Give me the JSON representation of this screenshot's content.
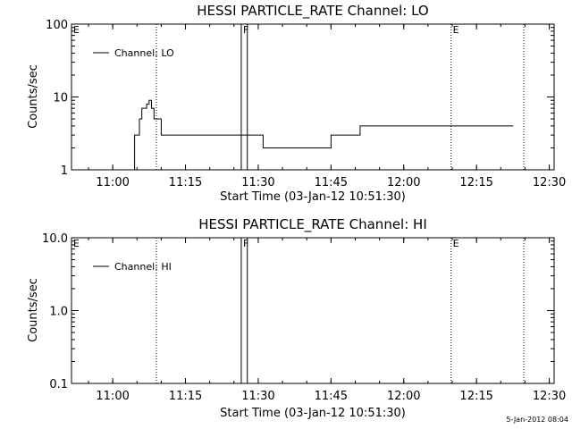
{
  "chart_data": [
    {
      "type": "line",
      "title": "HESSI PARTICLE_RATE Channel: LO",
      "xlabel": "Start Time (03-Jan-12 10:51:30)",
      "ylabel": "Counts/sec",
      "yscale": "log",
      "ylim": [
        1,
        100
      ],
      "xlim": [
        "10:51:30",
        "12:31:00"
      ],
      "xticks": [
        "11:00",
        "11:15",
        "11:30",
        "11:45",
        "12:00",
        "12:15",
        "12:30"
      ],
      "yticks": [
        "1",
        "10",
        "100"
      ],
      "legend": {
        "placement": "top-left",
        "entries": [
          "Channel: LO"
        ]
      },
      "vlines_dotted": [
        "11:09:00",
        "12:09:45",
        "12:24:45"
      ],
      "vlines_solid": [
        "11:26:30",
        "11:27:45"
      ],
      "flags": [
        {
          "label": "E",
          "at": "10:51:30"
        },
        {
          "label": "F",
          "at": "11:26:30"
        },
        {
          "label": "E",
          "at": "12:09:45"
        }
      ],
      "series": [
        {
          "x": [
            "10:54:00",
            "10:56:00",
            "10:57:30",
            "10:58:30",
            "10:59:30",
            "11:00:30",
            "11:01:30",
            "11:02:00",
            "11:03:00",
            "11:04:30",
            "11:05:30",
            "11:06:00",
            "11:07:00",
            "11:07:30",
            "11:08:00",
            "11:08:30",
            "11:09:30",
            "11:10:00",
            "11:11:00",
            "11:12:00",
            "11:13:00",
            "11:14:00",
            "11:15:00",
            "11:16:00",
            "11:17:00",
            "11:18:00",
            "11:19:00",
            "11:20:00",
            "11:21:00",
            "11:22:00",
            "11:23:00",
            "11:24:00",
            "11:25:00",
            "11:26:00",
            "11:27:00",
            "11:28:00",
            "11:29:00",
            "11:30:00",
            "11:31:00",
            "11:32:00",
            "11:33:00",
            "11:34:00",
            "11:35:00",
            "11:36:00",
            "11:37:00",
            "11:38:00",
            "11:39:00",
            "11:40:00",
            "11:41:00",
            "11:42:00",
            "11:43:00",
            "11:44:00",
            "11:45:00",
            "11:46:00",
            "11:47:00",
            "11:48:00",
            "11:49:00",
            "11:50:00",
            "11:51:00",
            "11:52:00",
            "11:53:00",
            "11:54:00",
            "11:55:00",
            "11:56:00",
            "11:57:00",
            "11:58:00",
            "11:59:00",
            "11:59:30",
            "12:00:00",
            "12:00:30",
            "12:01:00",
            "12:02:00",
            "12:03:00",
            "12:04:00",
            "12:05:00",
            "12:06:00",
            "12:07:00",
            "12:08:00",
            "12:09:00",
            "12:10:00",
            "12:11:00",
            "12:12:00",
            "12:13:00",
            "12:14:00",
            "12:15:00",
            "12:16:00",
            "12:17:00",
            "12:22:00"
          ],
          "y": [
            1,
            1,
            1,
            1,
            1,
            1,
            1,
            1,
            1,
            3,
            5,
            7,
            8,
            9,
            7,
            5,
            5,
            3,
            3,
            3,
            3,
            3,
            3,
            3,
            3,
            3,
            3,
            3,
            3,
            3,
            3,
            3,
            3,
            3,
            3,
            3,
            3,
            3,
            2,
            2,
            2,
            2,
            2,
            2,
            2,
            2,
            2,
            2,
            2,
            2,
            2,
            2,
            3,
            3,
            3,
            3,
            3,
            3,
            4,
            4,
            4,
            4,
            4,
            4,
            4,
            4,
            4,
            4,
            4,
            4,
            4,
            4,
            4,
            4,
            4,
            4,
            4,
            4,
            4,
            4,
            4,
            4,
            4,
            4,
            4,
            4,
            4,
            4
          ]
        }
      ]
    },
    {
      "type": "line",
      "title": "HESSI PARTICLE_RATE Channel: HI",
      "xlabel": "Start Time (03-Jan-12 10:51:30)",
      "ylabel": "Counts/sec",
      "yscale": "log",
      "ylim": [
        0.1,
        10
      ],
      "xlim": [
        "10:51:30",
        "12:31:00"
      ],
      "xticks": [
        "11:00",
        "11:15",
        "11:30",
        "11:45",
        "12:00",
        "12:15",
        "12:30"
      ],
      "yticks": [
        "10.0",
        "1.0",
        "0.1"
      ],
      "legend": {
        "placement": "top-left",
        "entries": [
          "Channel: HI"
        ]
      },
      "vlines_dotted": [
        "11:09:00",
        "12:09:45",
        "12:24:45"
      ],
      "vlines_solid": [
        "11:26:30",
        "11:27:45"
      ],
      "flags": [
        {
          "label": "E",
          "at": "10:51:30"
        },
        {
          "label": "F",
          "at": "11:26:30"
        },
        {
          "label": "E",
          "at": "12:09:45"
        }
      ],
      "series": [
        {
          "x": [],
          "y": []
        }
      ]
    }
  ],
  "footer": {
    "timestamp": "5-Jan-2012 08:04"
  }
}
